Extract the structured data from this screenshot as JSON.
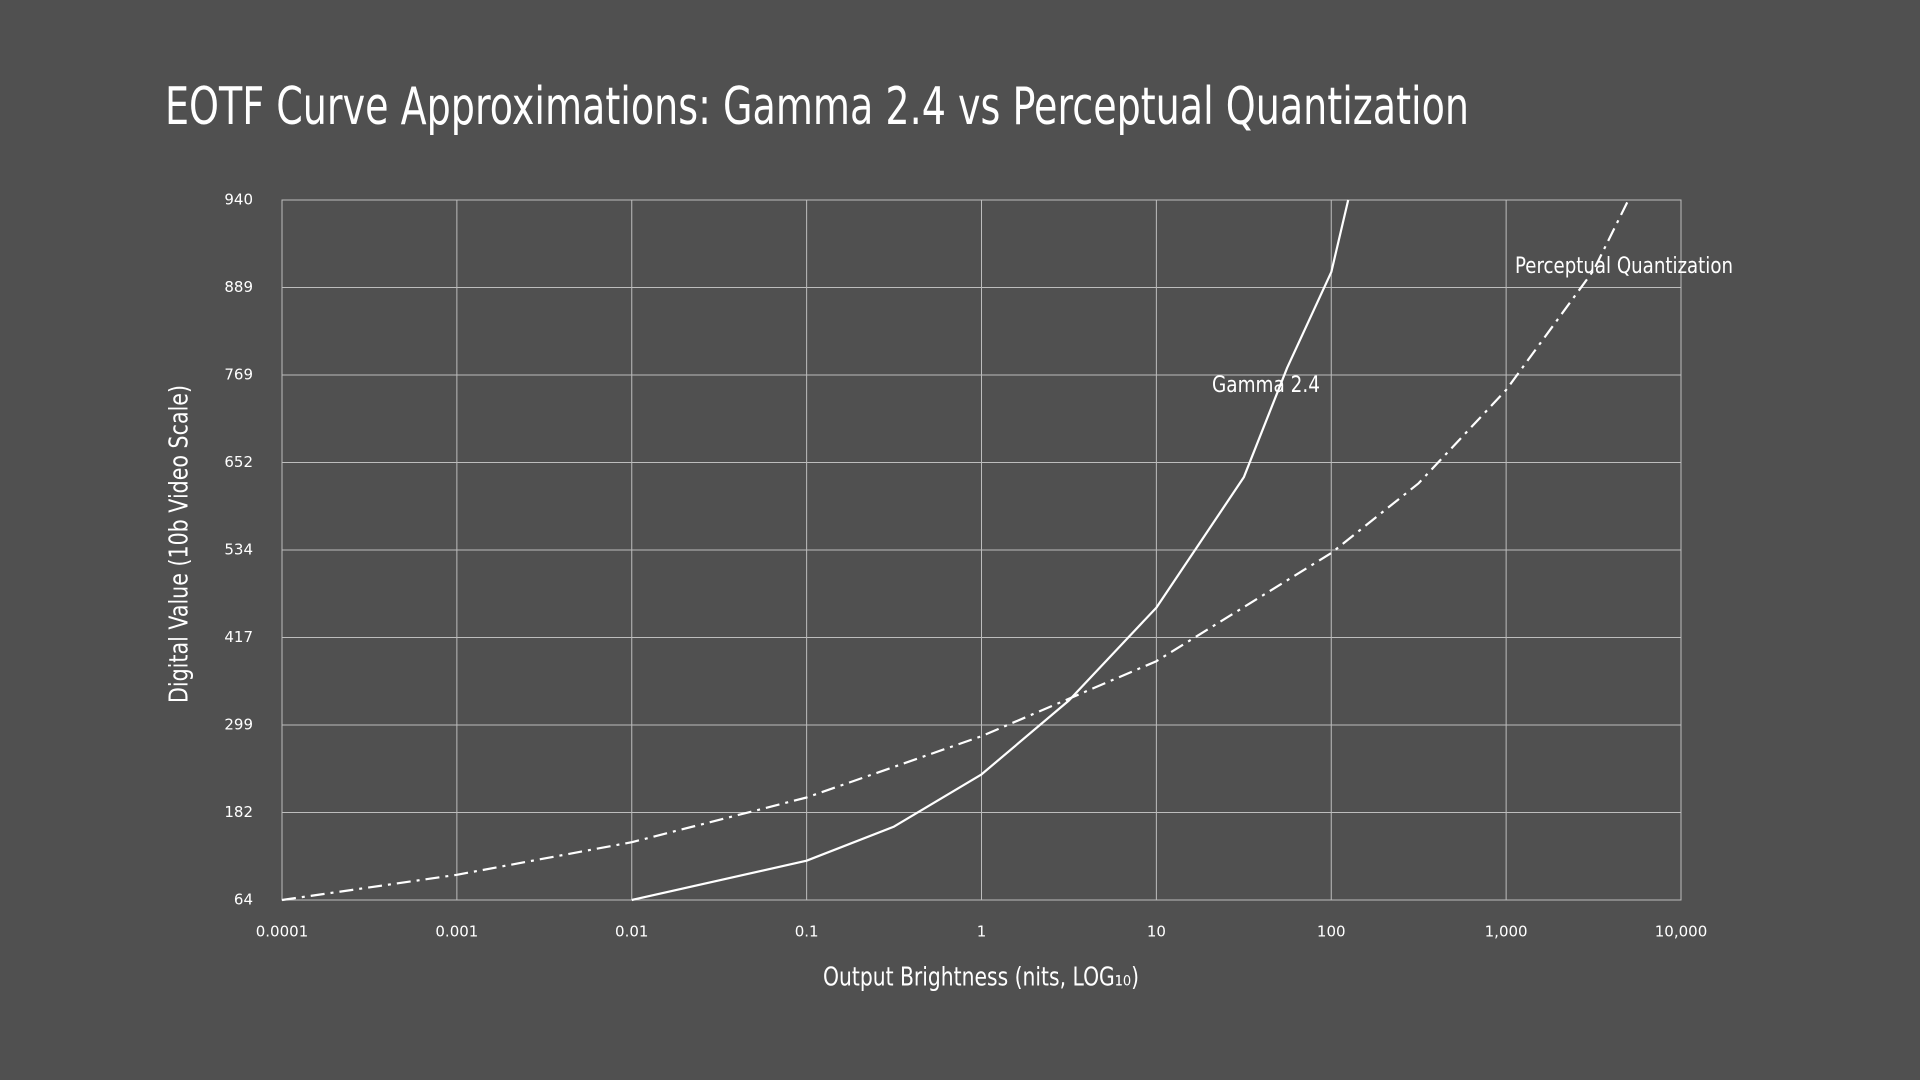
{
  "chart_data": {
    "type": "line",
    "title": "EOTF Curve Approximations: Gamma 2.4 vs Perceptual Quantization",
    "x_label": "Output Brightness (nits, LOG₁₀)",
    "y_label": "Digital Value (10b Video Scale)",
    "x_scale": "log",
    "y_scale": "tick-spaced",
    "grid": true,
    "xlim": [
      0.0001,
      10000
    ],
    "xticks": [
      0.0001,
      0.001,
      0.01,
      0.1,
      1,
      10,
      100,
      {
        "value": 1000,
        "label": "1,000"
      },
      {
        "value": 10000,
        "label": "10,000"
      }
    ],
    "ylim": [
      64,
      940
    ],
    "yticks": [
      64,
      182,
      299,
      417,
      534,
      652,
      769,
      889,
      940
    ],
    "series": [
      {
        "name": "Gamma 2.4",
        "color": "#ffffff",
        "line_style": "solid",
        "x": [
          0.01,
          0.1,
          0.316,
          1,
          3.16,
          10,
          31.6,
          56,
          100,
          125
        ],
        "values": [
          64,
          117,
          163,
          233,
          332,
          457,
          632,
          779,
          898,
          940
        ]
      },
      {
        "name": "Perceptual Quantization",
        "color": "#ffffff",
        "line_style": "dashdot",
        "x": [
          0.0001,
          0.001,
          0.01,
          0.1,
          1,
          10,
          100,
          316,
          1000,
          3162,
          5000
        ],
        "values": [
          64,
          98,
          142,
          202,
          284,
          385,
          530,
          624,
          749,
          899,
          940
        ]
      }
    ]
  }
}
